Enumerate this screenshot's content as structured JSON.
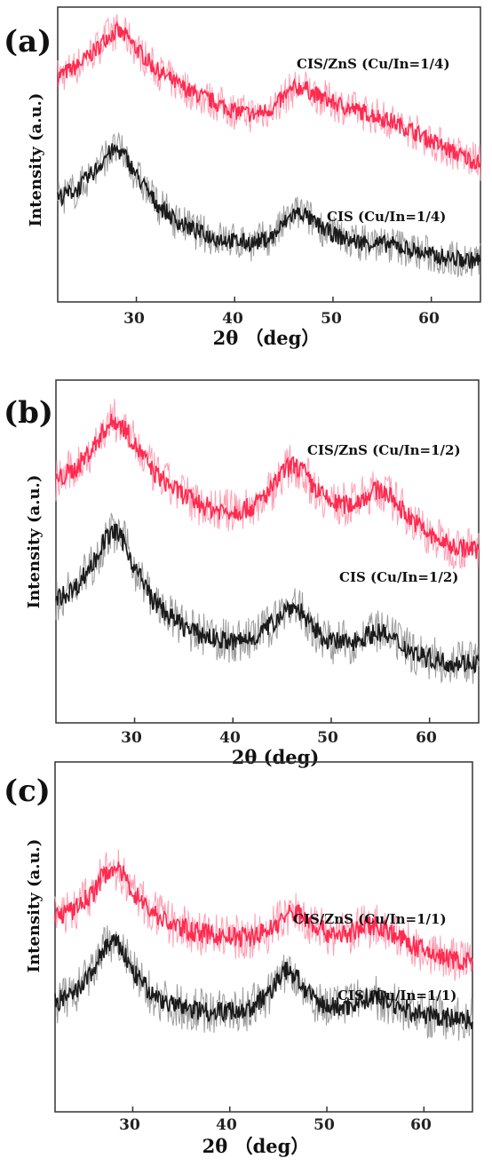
{
  "chart_data": [
    {
      "type": "line",
      "panel_label": "(a)",
      "xlabel": "2θ （deg）",
      "ylabel": "Intensity (a.u.)",
      "xlim": [
        22,
        65
      ],
      "x_ticks": [
        30,
        40,
        50,
        60
      ],
      "series": [
        {
          "name": "CIS/ZnS (Cu/In=1/4)",
          "color": "#ff2a4f",
          "offset": 0.55,
          "x": [
            22,
            24,
            26,
            27,
            28,
            29,
            30,
            32,
            34,
            36,
            38,
            40,
            42,
            44,
            45,
            46,
            47,
            48,
            50,
            52,
            54,
            56,
            58,
            60,
            62,
            64,
            65
          ],
          "y": [
            0.7,
            0.76,
            0.86,
            0.93,
            0.96,
            0.93,
            0.86,
            0.74,
            0.66,
            0.6,
            0.55,
            0.5,
            0.48,
            0.52,
            0.58,
            0.63,
            0.64,
            0.6,
            0.55,
            0.51,
            0.48,
            0.44,
            0.39,
            0.33,
            0.27,
            0.22,
            0.2
          ]
        },
        {
          "name": "CIS (Cu/In=1/4)",
          "color": "#1a1a1a",
          "offset": 0.0,
          "x": [
            22,
            24,
            26,
            27,
            28,
            29,
            30,
            32,
            34,
            36,
            38,
            40,
            42,
            44,
            45,
            46,
            47,
            48,
            50,
            52,
            54,
            56,
            58,
            60,
            62,
            64,
            65
          ],
          "y": [
            0.55,
            0.6,
            0.72,
            0.8,
            0.83,
            0.78,
            0.68,
            0.52,
            0.42,
            0.36,
            0.32,
            0.3,
            0.29,
            0.33,
            0.4,
            0.46,
            0.46,
            0.41,
            0.34,
            0.3,
            0.29,
            0.28,
            0.25,
            0.22,
            0.2,
            0.19,
            0.19
          ]
        }
      ]
    },
    {
      "type": "line",
      "panel_label": "(b)",
      "xlabel": "2θ (deg)",
      "ylabel": "Intensity (a.u.)",
      "xlim": [
        22,
        65
      ],
      "x_ticks": [
        30,
        40,
        50,
        60
      ],
      "series": [
        {
          "name": "CIS/ZnS (Cu/In=1/2)",
          "color": "#ff2a4f",
          "offset": 0.45,
          "x": [
            22,
            24,
            26,
            27,
            28,
            29,
            30,
            32,
            34,
            36,
            38,
            40,
            42,
            44,
            45,
            46,
            47,
            48,
            50,
            52,
            54,
            55,
            56,
            58,
            60,
            62,
            64,
            65
          ],
          "y": [
            0.7,
            0.76,
            0.88,
            0.96,
            1.0,
            0.96,
            0.88,
            0.74,
            0.66,
            0.6,
            0.56,
            0.55,
            0.57,
            0.66,
            0.74,
            0.78,
            0.76,
            0.68,
            0.59,
            0.58,
            0.64,
            0.66,
            0.62,
            0.52,
            0.43,
            0.38,
            0.36,
            0.36
          ]
        },
        {
          "name": "CIS (Cu/In=1/2)",
          "color": "#1a1a1a",
          "offset": 0.0,
          "x": [
            22,
            24,
            26,
            27,
            28,
            29,
            30,
            32,
            34,
            36,
            38,
            40,
            42,
            44,
            45,
            46,
            47,
            48,
            50,
            52,
            54,
            55,
            56,
            58,
            60,
            62,
            64,
            65
          ],
          "y": [
            0.56,
            0.62,
            0.76,
            0.86,
            0.9,
            0.84,
            0.72,
            0.55,
            0.46,
            0.4,
            0.37,
            0.35,
            0.37,
            0.44,
            0.5,
            0.53,
            0.5,
            0.42,
            0.35,
            0.35,
            0.39,
            0.4,
            0.37,
            0.31,
            0.27,
            0.25,
            0.25,
            0.25
          ]
        }
      ]
    },
    {
      "type": "line",
      "panel_label": "(c)",
      "xlabel": "2θ （deg）",
      "ylabel": "Intensity (a.u.)",
      "xlim": [
        22,
        65
      ],
      "x_ticks": [
        30,
        40,
        50,
        60
      ],
      "series": [
        {
          "name": "CIS/ZnS (Cu/In=1/1)",
          "color": "#ff2a4f",
          "offset": 0.28,
          "x": [
            22,
            24,
            26,
            27,
            28,
            29,
            30,
            32,
            34,
            36,
            38,
            40,
            42,
            44,
            45,
            46,
            47,
            48,
            50,
            52,
            54,
            55,
            56,
            58,
            60,
            62,
            64,
            65
          ],
          "y": [
            0.62,
            0.65,
            0.74,
            0.82,
            0.86,
            0.82,
            0.74,
            0.64,
            0.58,
            0.55,
            0.53,
            0.52,
            0.52,
            0.55,
            0.59,
            0.63,
            0.64,
            0.6,
            0.54,
            0.53,
            0.57,
            0.58,
            0.56,
            0.5,
            0.45,
            0.42,
            0.4,
            0.4
          ]
        },
        {
          "name": "CIS (Cu/In=1/1)",
          "color": "#1a1a1a",
          "offset": 0.0,
          "x": [
            22,
            24,
            26,
            27,
            28,
            29,
            30,
            32,
            34,
            36,
            38,
            40,
            42,
            44,
            45,
            46,
            47,
            48,
            50,
            52,
            54,
            55,
            56,
            58,
            60,
            62,
            64,
            65
          ],
          "y": [
            0.48,
            0.52,
            0.64,
            0.74,
            0.78,
            0.73,
            0.63,
            0.52,
            0.47,
            0.45,
            0.44,
            0.44,
            0.45,
            0.52,
            0.6,
            0.64,
            0.6,
            0.52,
            0.46,
            0.46,
            0.5,
            0.51,
            0.49,
            0.45,
            0.42,
            0.41,
            0.4,
            0.4
          ]
        }
      ]
    }
  ]
}
